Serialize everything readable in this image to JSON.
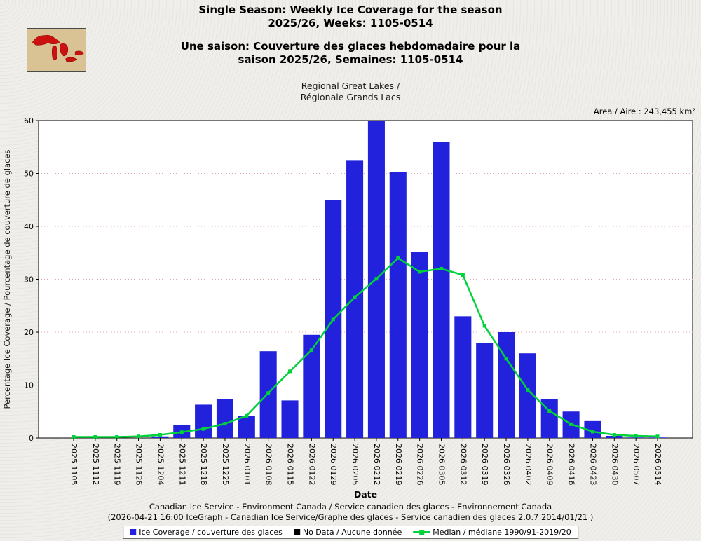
{
  "header": {
    "title_en": [
      "Single Season: Weekly Ice Coverage for the season",
      "2025/26, Weeks: 1105-0514"
    ],
    "title_fr": [
      "Une saison: Couverture des glaces hebdomadaire pour la",
      "saison 2025/26, Semaines: 1105-0514"
    ],
    "subtitle": [
      "Regional Great Lakes /",
      "Régionale Grands Lacs"
    ],
    "area_label": "Area / Aire : 243,455 km²",
    "logo_name": "great-lakes-map"
  },
  "chart_data": {
    "type": "bar",
    "title": "Single Season: Weekly Ice Coverage for the season 2025/26, Weeks: 1105-0514",
    "subtitle": "Regional Great Lakes / Régionale Grands Lacs",
    "xlabel": "Date",
    "ylabel": "Percentage Ice Coverage / Pourcentage de couverture de glaces",
    "ylim": [
      0,
      60
    ],
    "yticks": [
      0,
      10,
      20,
      30,
      40,
      50,
      60
    ],
    "grid": true,
    "grid_color": "#dca8a8",
    "legend_position": "bottom",
    "categories": [
      "2025 1105",
      "2025 1112",
      "2025 1119",
      "2025 1126",
      "2025 1204",
      "2025 1211",
      "2025 1218",
      "2025 1225",
      "2026 0101",
      "2026 0108",
      "2026 0115",
      "2026 0122",
      "2026 0129",
      "2026 0205",
      "2026 0212",
      "2026 0219",
      "2026 0226",
      "2026 0305",
      "2026 0312",
      "2026 0319",
      "2026 0326",
      "2026 0402",
      "2026 0409",
      "2026 0416",
      "2026 0423",
      "2026 0430",
      "2026 0507",
      "2026 0514"
    ],
    "series": [
      {
        "name": "Ice Coverage / couverture des glaces",
        "type": "bar",
        "color": "#2222dd",
        "values": [
          0,
          0,
          0,
          0,
          0.3,
          2.5,
          6.3,
          7.3,
          4.2,
          16.4,
          7.1,
          19.5,
          45.0,
          52.4,
          59.9,
          50.3,
          35.1,
          56.0,
          23.0,
          18.0,
          20.0,
          16.0,
          7.3,
          5.0,
          3.2,
          0.4,
          0.1,
          0.1
        ]
      },
      {
        "name": "Median / médiane 1990/91-2019/20",
        "type": "line",
        "color": "#00d23c",
        "values": [
          0.2,
          0.2,
          0.2,
          0.3,
          0.6,
          1.1,
          1.7,
          2.7,
          4.2,
          8.5,
          12.6,
          16.6,
          22.4,
          26.6,
          30.1,
          34.0,
          31.4,
          32.0,
          30.8,
          21.2,
          15.0,
          9.1,
          5.1,
          2.6,
          1.2,
          0.6,
          0.4,
          0.3
        ]
      }
    ]
  },
  "footer": {
    "line1": "Canadian Ice Service - Environment Canada / Service canadien des glaces - Environnement Canada",
    "line2": "(2026-04-21 16:00 IceGraph - Canadian Ice Service/Graphe des glaces - Service canadien des glaces 2.0.7 2014/01/21 )",
    "legend": [
      {
        "label": "Ice Coverage / couverture des glaces",
        "color": "#2222dd",
        "swatch": "square"
      },
      {
        "label": "No Data / Aucune donnée",
        "color": "#000000",
        "swatch": "square"
      },
      {
        "label": "Median / médiane 1990/91-2019/20",
        "color": "#00d23c",
        "swatch": "line"
      }
    ]
  }
}
